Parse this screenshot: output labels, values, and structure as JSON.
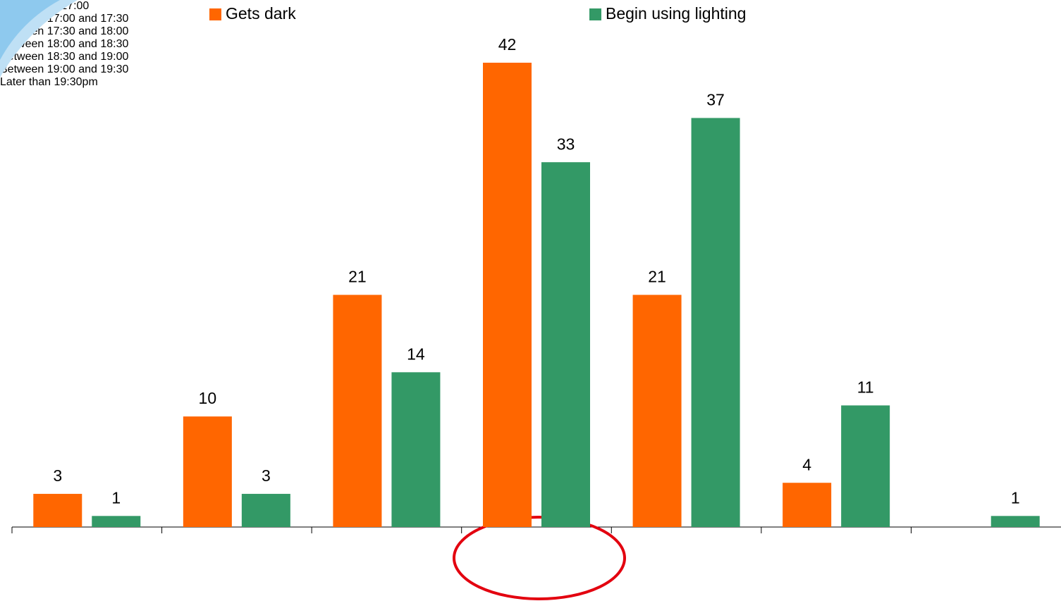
{
  "chart_data": {
    "type": "bar",
    "categories": [
      "Earlier than 17:00",
      "Between 17:00 and 17:30",
      "Between 17:30 and 18:00",
      "Between 18:00 and 18:30",
      "Between 18:30 and 19:00",
      "Between 19:00 and 19:30",
      "Later than 19:30pm"
    ],
    "series": [
      {
        "name": "Gets dark",
        "color": "#ff6600",
        "values": [
          3,
          10,
          21,
          42,
          21,
          4,
          null
        ]
      },
      {
        "name": "Begin using lighting",
        "color": "#339966",
        "values": [
          1,
          3,
          14,
          33,
          37,
          11,
          1
        ]
      }
    ]
  }
}
